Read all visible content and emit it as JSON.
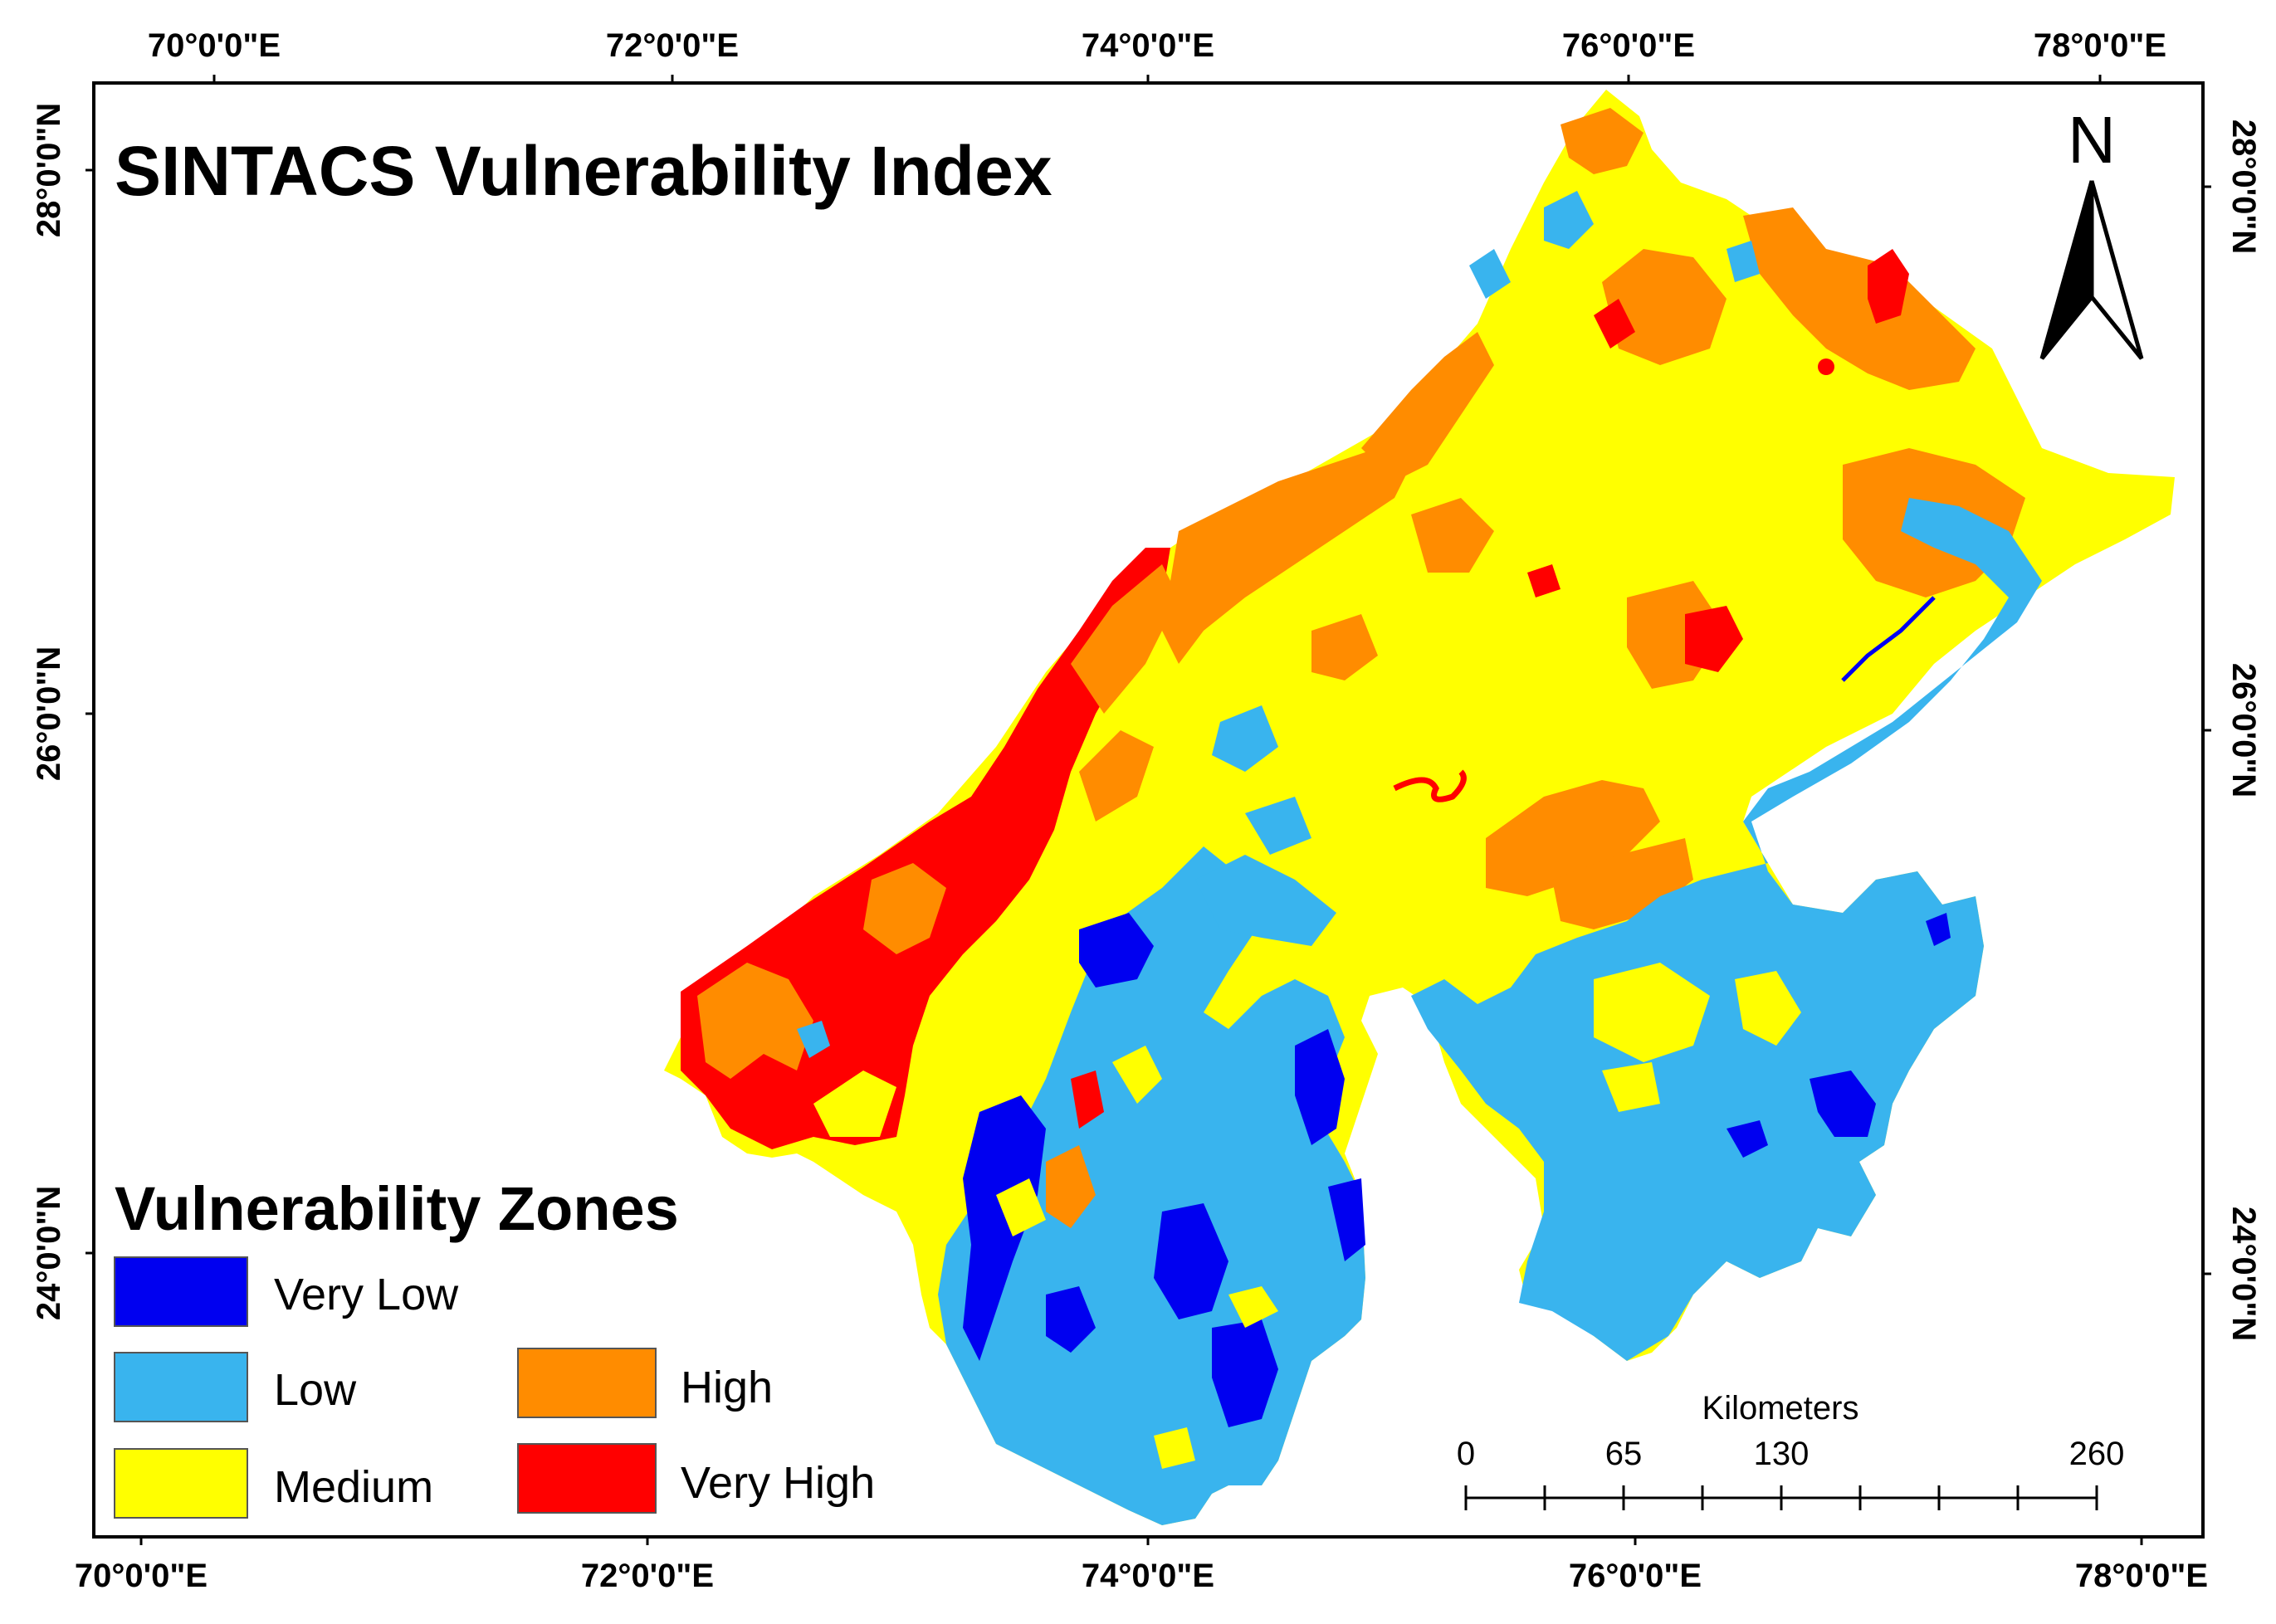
{
  "map": {
    "title": "SINTACS Vulnerability Index",
    "colors": {
      "very_low": "#0000f0",
      "low": "#39b4ee",
      "medium": "#ffff00",
      "high": "#ff8c00",
      "very_high": "#ff0000",
      "frame": "#000000",
      "background": "#ffffff"
    }
  },
  "graticule": {
    "top": [
      "70°0'0\"E",
      "72°0'0\"E",
      "74°0'0\"E",
      "76°0'0\"E",
      "78°0'0\"E"
    ],
    "bottom": [
      "70°0'0\"E",
      "72°0'0\"E",
      "74°0'0\"E",
      "76°0'0\"E",
      "78°0'0\"E"
    ],
    "left": [
      "28°0'0\"N",
      "26°0'0\"N",
      "24°0'0\"N"
    ],
    "right": [
      "28°0'0\"N",
      "26°0'0\"N",
      "24°0'0\"N"
    ]
  },
  "north_arrow": {
    "label": "N",
    "icon": "north-arrow-icon"
  },
  "legend": {
    "title": "Vulnerability Zones",
    "items": [
      {
        "label": "Very Low",
        "color": "#0000f0"
      },
      {
        "label": "Low",
        "color": "#39b4ee"
      },
      {
        "label": "Medium",
        "color": "#ffff00"
      },
      {
        "label": "High",
        "color": "#ff8c00"
      },
      {
        "label": "Very High",
        "color": "#ff0000"
      }
    ]
  },
  "scale_bar": {
    "units": "Kilometers",
    "labels": [
      "0",
      "65",
      "130",
      "260"
    ]
  }
}
